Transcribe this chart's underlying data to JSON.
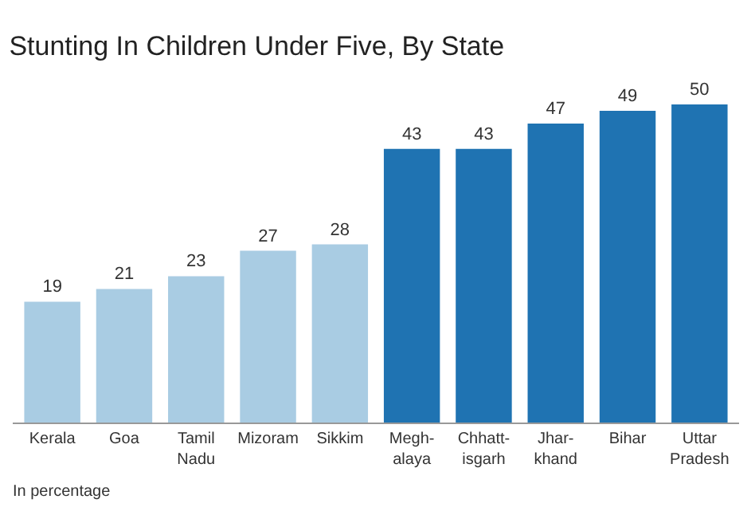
{
  "chart_data": {
    "type": "bar",
    "title": "Stunting In Children Under Five, By State",
    "categories": [
      "Kerala",
      "Goa",
      "Tamil\nNadu",
      "Mizoram",
      "Sikkim",
      "Megh-\nalaya",
      "Chhatt-\nisgarh",
      "Jhar-\nkhand",
      "Bihar",
      "Uttar\nPradesh"
    ],
    "values": [
      19,
      21,
      23,
      27,
      28,
      43,
      43,
      47,
      49,
      50
    ],
    "colors": [
      "#a9cce3",
      "#a9cce3",
      "#a9cce3",
      "#a9cce3",
      "#a9cce3",
      "#1f73b2",
      "#1f73b2",
      "#1f73b2",
      "#1f73b2",
      "#1f73b2"
    ],
    "data_labels": true,
    "tick_labels": "x",
    "annotations": [
      "In percentage"
    ]
  }
}
